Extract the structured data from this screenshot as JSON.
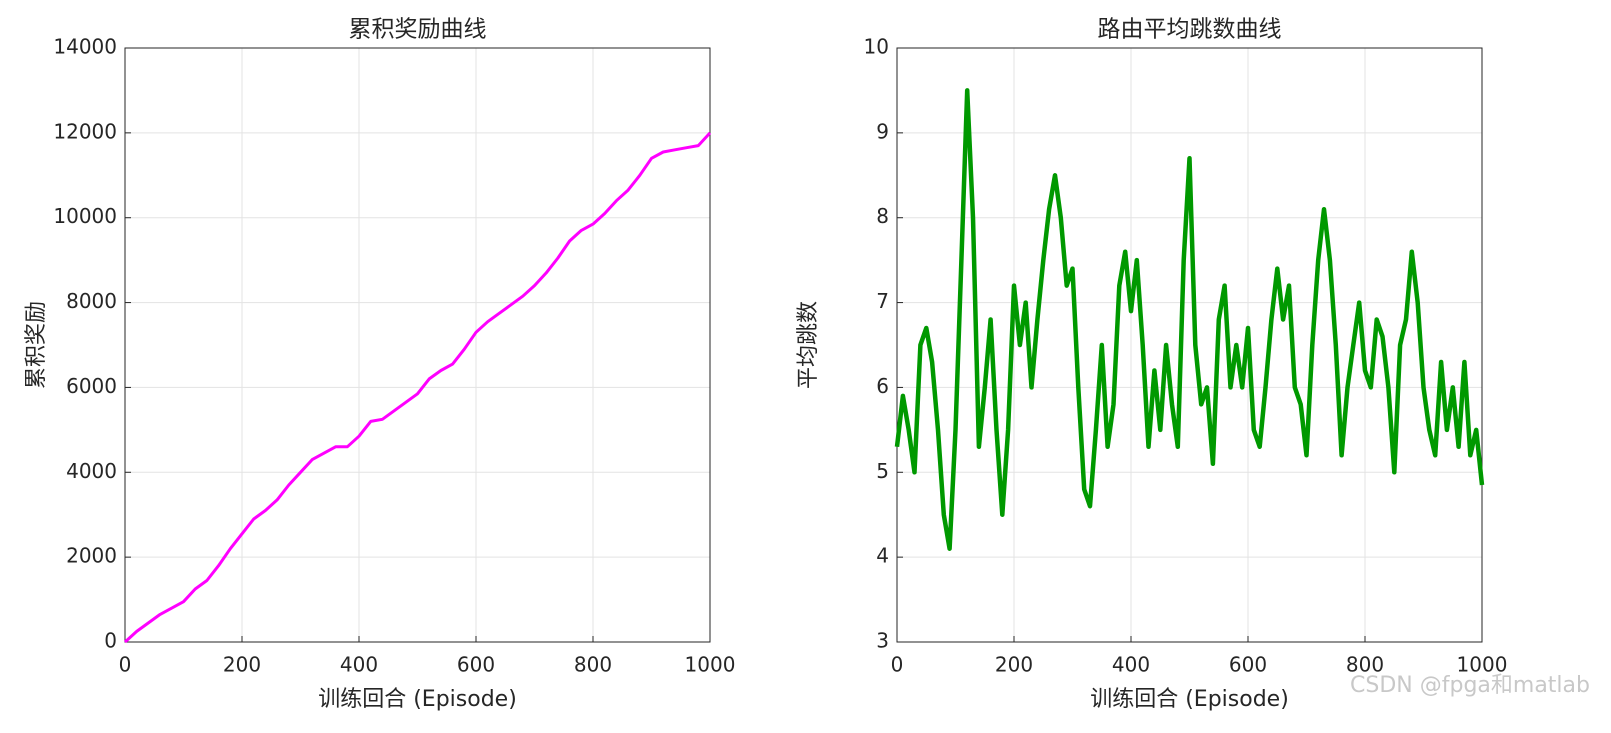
{
  "chart_data": [
    {
      "type": "line",
      "title": "累积奖励曲线",
      "xlabel": "训练回合 (Episode)",
      "ylabel": "累积奖励",
      "color": "#ff00ff",
      "grid": true,
      "x": [
        0,
        20,
        40,
        60,
        80,
        100,
        120,
        140,
        160,
        180,
        200,
        220,
        240,
        260,
        280,
        300,
        320,
        340,
        360,
        380,
        400,
        420,
        440,
        460,
        480,
        500,
        520,
        540,
        560,
        580,
        600,
        620,
        640,
        660,
        680,
        700,
        720,
        740,
        760,
        780,
        800,
        820,
        840,
        860,
        880,
        900,
        920,
        940,
        960,
        980,
        1000
      ],
      "values": [
        0,
        250,
        450,
        650,
        800,
        950,
        1250,
        1450,
        1800,
        2200,
        2550,
        2900,
        3100,
        3350,
        3700,
        4000,
        4300,
        4450,
        4600,
        4600,
        4850,
        5200,
        5250,
        5450,
        5650,
        5850,
        6200,
        6400,
        6550,
        6900,
        7300,
        7550,
        7750,
        7950,
        8150,
        8400,
        8700,
        9050,
        9450,
        9700,
        9850,
        10100,
        10400,
        10650,
        11000,
        11400,
        11550,
        11600,
        11650,
        11700,
        12000
      ],
      "xlim": [
        0,
        1000
      ],
      "xticks": [
        0,
        200,
        400,
        600,
        800,
        1000
      ],
      "ylim": [
        0,
        14000
      ],
      "yticks": [
        0,
        2000,
        4000,
        6000,
        8000,
        10000,
        12000,
        14000
      ]
    },
    {
      "type": "line",
      "title": "路由平均跳数曲线",
      "xlabel": "训练回合 (Episode)",
      "ylabel": "平均跳数",
      "color": "#009900",
      "grid": true,
      "x": [
        0,
        10,
        20,
        30,
        40,
        50,
        60,
        70,
        80,
        90,
        100,
        110,
        120,
        130,
        140,
        150,
        160,
        170,
        180,
        190,
        200,
        210,
        220,
        230,
        240,
        250,
        260,
        270,
        280,
        290,
        300,
        310,
        320,
        330,
        340,
        350,
        360,
        370,
        380,
        390,
        400,
        410,
        420,
        430,
        440,
        450,
        460,
        470,
        480,
        490,
        500,
        510,
        520,
        530,
        540,
        550,
        560,
        570,
        580,
        590,
        600,
        610,
        620,
        630,
        640,
        650,
        660,
        670,
        680,
        690,
        700,
        710,
        720,
        730,
        740,
        750,
        760,
        770,
        780,
        790,
        800,
        810,
        820,
        830,
        840,
        850,
        860,
        870,
        880,
        890,
        900,
        910,
        920,
        930,
        940,
        950,
        960,
        970,
        980,
        990,
        1000
      ],
      "values": [
        5.3,
        5.9,
        5.5,
        5.0,
        6.5,
        6.7,
        6.3,
        5.5,
        4.5,
        4.1,
        5.5,
        7.5,
        9.5,
        8.0,
        5.3,
        6.0,
        6.8,
        5.5,
        4.5,
        5.5,
        7.2,
        6.5,
        7.0,
        6.0,
        6.8,
        7.5,
        8.1,
        8.5,
        8.0,
        7.2,
        7.4,
        6.0,
        4.8,
        4.6,
        5.5,
        6.5,
        5.3,
        5.8,
        7.2,
        7.6,
        6.9,
        7.5,
        6.5,
        5.3,
        6.2,
        5.5,
        6.5,
        5.8,
        5.3,
        7.5,
        8.7,
        6.5,
        5.8,
        6.0,
        5.1,
        6.8,
        7.2,
        6.0,
        6.5,
        6.0,
        6.7,
        5.5,
        5.3,
        6.0,
        6.8,
        7.4,
        6.8,
        7.2,
        6.0,
        5.8,
        5.2,
        6.5,
        7.5,
        8.1,
        7.5,
        6.5,
        5.2,
        6.0,
        6.5,
        7.0,
        6.2,
        6.0,
        6.8,
        6.6,
        6.0,
        5.0,
        6.5,
        6.8,
        7.6,
        7.0,
        6.0,
        5.5,
        5.2,
        6.3,
        5.5,
        6.0,
        5.3,
        6.3,
        5.2,
        5.5,
        4.85
      ],
      "xlim": [
        0,
        1000
      ],
      "xticks": [
        0,
        200,
        400,
        600,
        800,
        1000
      ],
      "ylim": [
        3,
        10
      ],
      "yticks": [
        3,
        4,
        5,
        6,
        7,
        8,
        9,
        10
      ]
    }
  ],
  "watermark": "CSDN @fpga和matlab"
}
